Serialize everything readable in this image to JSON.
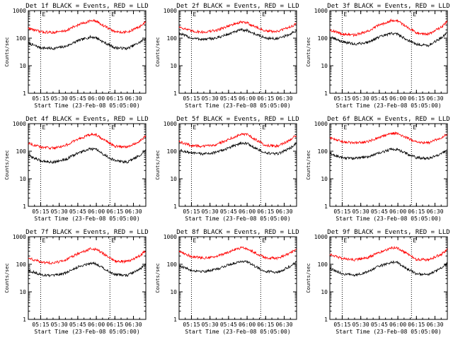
{
  "figure": {
    "background": "#ffffff",
    "axis_color": "#000000",
    "series_colors": {
      "events": "#000000",
      "lld": "#ff0000"
    }
  },
  "chart_data": [
    {
      "type": "line",
      "title": "Det 1f BLACK = Events, RED = LLD",
      "xlabel": "Start Time (23-Feb-08 05:05:00)",
      "ylabel": "Counts/sec",
      "yscale": "log",
      "ylim": [
        1,
        1000
      ],
      "xlim": [
        "05:05",
        "06:40"
      ],
      "yticks": [
        "1",
        "10",
        "100",
        "1000"
      ],
      "xticks": [
        "05:15",
        "05:30",
        "05:45",
        "06:00",
        "06:15",
        "06:30"
      ],
      "markers": [
        "05:15",
        "06:11"
      ],
      "marker_letters": [
        "E",
        "E"
      ],
      "grid": false,
      "x": [
        "05:05",
        "05:15",
        "05:25",
        "05:35",
        "05:45",
        "05:55",
        "06:00",
        "06:05",
        "06:15",
        "06:25",
        "06:35",
        "06:40"
      ],
      "series": [
        {
          "color": "#000000",
          "values": [
            65,
            45,
            42,
            50,
            80,
            110,
            105,
            75,
            45,
            42,
            70,
            100
          ]
        },
        {
          "color": "#ff0000",
          "values": [
            230,
            170,
            160,
            185,
            300,
            430,
            410,
            300,
            170,
            165,
            260,
            390
          ]
        }
      ]
    },
    {
      "type": "line",
      "title": "Det 2f BLACK = Events, RED = LLD",
      "xlabel": "Start Time (23-Feb-08 05:05:00)",
      "ylabel": "Counts/sec",
      "yscale": "log",
      "ylim": [
        1,
        1000
      ],
      "xlim": [
        "05:05",
        "06:40"
      ],
      "yticks": [
        "1",
        "10",
        "100",
        "1000"
      ],
      "xticks": [
        "05:15",
        "05:30",
        "05:45",
        "06:00",
        "06:15",
        "06:30"
      ],
      "markers": [
        "05:15",
        "06:11"
      ],
      "marker_letters": [
        "E",
        "E"
      ],
      "grid": false,
      "x": [
        "05:05",
        "05:15",
        "05:25",
        "05:35",
        "05:45",
        "05:55",
        "06:00",
        "06:05",
        "06:15",
        "06:25",
        "06:35",
        "06:40"
      ],
      "series": [
        {
          "color": "#000000",
          "values": [
            150,
            100,
            90,
            100,
            140,
            200,
            190,
            150,
            100,
            95,
            140,
            190
          ]
        },
        {
          "color": "#ff0000",
          "values": [
            260,
            180,
            165,
            190,
            280,
            380,
            360,
            280,
            180,
            175,
            260,
            330
          ]
        }
      ]
    },
    {
      "type": "line",
      "title": "Det 3f BLACK = Events, RED = LLD",
      "xlabel": "Start Time (23-Feb-08 05:05:00)",
      "ylabel": "Counts/sec",
      "yscale": "log",
      "ylim": [
        1,
        1000
      ],
      "xlim": [
        "05:05",
        "06:40"
      ],
      "yticks": [
        "1",
        "10",
        "100",
        "1000"
      ],
      "xticks": [
        "05:15",
        "05:30",
        "05:45",
        "06:00",
        "06:15",
        "06:30"
      ],
      "markers": [
        "05:15",
        "06:11"
      ],
      "marker_letters": [
        "E",
        "E"
      ],
      "grid": false,
      "x": [
        "05:05",
        "05:15",
        "05:25",
        "05:35",
        "05:45",
        "05:55",
        "06:00",
        "06:05",
        "06:15",
        "06:25",
        "06:35",
        "06:40"
      ],
      "series": [
        {
          "color": "#000000",
          "values": [
            110,
            75,
            60,
            70,
            110,
            150,
            140,
            100,
            60,
            55,
            100,
            170
          ]
        },
        {
          "color": "#ff0000",
          "values": [
            200,
            140,
            130,
            170,
            300,
            450,
            420,
            300,
            160,
            140,
            250,
            400
          ]
        }
      ]
    },
    {
      "type": "line",
      "title": "Det 4f BLACK = Events, RED = LLD",
      "xlabel": "Start Time (23-Feb-08 05:05:00)",
      "ylabel": "Counts/sec",
      "yscale": "log",
      "ylim": [
        1,
        1000
      ],
      "xlim": [
        "05:05",
        "06:40"
      ],
      "yticks": [
        "1",
        "10",
        "100",
        "1000"
      ],
      "xticks": [
        "05:15",
        "05:30",
        "05:45",
        "06:00",
        "06:15",
        "06:30"
      ],
      "markers": [
        "05:15",
        "06:11"
      ],
      "marker_letters": [
        "E",
        "E"
      ],
      "grid": false,
      "x": [
        "05:05",
        "05:15",
        "05:25",
        "05:35",
        "05:45",
        "05:55",
        "06:00",
        "06:05",
        "06:15",
        "06:25",
        "06:35",
        "06:40"
      ],
      "series": [
        {
          "color": "#000000",
          "values": [
            70,
            45,
            40,
            50,
            85,
            120,
            115,
            80,
            45,
            40,
            70,
            110
          ]
        },
        {
          "color": "#ff0000",
          "values": [
            200,
            140,
            130,
            160,
            270,
            400,
            390,
            280,
            150,
            145,
            230,
            360
          ]
        }
      ]
    },
    {
      "type": "line",
      "title": "Det 5f BLACK = Events, RED = LLD",
      "xlabel": "Start Time (23-Feb-08 05:05:00)",
      "ylabel": "Counts/sec",
      "yscale": "log",
      "ylim": [
        1,
        1000
      ],
      "xlim": [
        "05:05",
        "06:40"
      ],
      "yticks": [
        "1",
        "10",
        "100",
        "1000"
      ],
      "xticks": [
        "05:15",
        "05:30",
        "05:45",
        "06:00",
        "06:15",
        "06:30"
      ],
      "markers": [
        "05:15",
        "06:11"
      ],
      "marker_letters": [
        "E",
        "E"
      ],
      "grid": false,
      "x": [
        "05:05",
        "05:15",
        "05:25",
        "05:35",
        "05:45",
        "05:55",
        "06:00",
        "06:05",
        "06:15",
        "06:25",
        "06:35",
        "06:40"
      ],
      "series": [
        {
          "color": "#000000",
          "values": [
            110,
            85,
            80,
            90,
            130,
            200,
            190,
            140,
            85,
            80,
            130,
            200
          ]
        },
        {
          "color": "#ff0000",
          "values": [
            220,
            160,
            150,
            175,
            270,
            420,
            400,
            300,
            160,
            155,
            250,
            400
          ]
        }
      ]
    },
    {
      "type": "line",
      "title": "Det 6f BLACK = Events, RED = LLD",
      "xlabel": "Start Time (23-Feb-08 05:05:00)",
      "ylabel": "Counts/sec",
      "yscale": "log",
      "ylim": [
        1,
        1000
      ],
      "xlim": [
        "05:05",
        "06:40"
      ],
      "yticks": [
        "1",
        "10",
        "100",
        "1000"
      ],
      "xticks": [
        "05:15",
        "05:30",
        "05:45",
        "06:00",
        "06:15",
        "06:30"
      ],
      "markers": [
        "05:15",
        "06:11"
      ],
      "marker_letters": [
        "E",
        "E"
      ],
      "grid": false,
      "x": [
        "05:05",
        "05:15",
        "05:25",
        "05:35",
        "05:45",
        "05:55",
        "06:00",
        "06:05",
        "06:15",
        "06:25",
        "06:35",
        "06:40"
      ],
      "series": [
        {
          "color": "#000000",
          "values": [
            80,
            58,
            55,
            62,
            85,
            120,
            115,
            90,
            58,
            55,
            80,
            110
          ]
        },
        {
          "color": "#ff0000",
          "values": [
            300,
            220,
            200,
            215,
            320,
            450,
            440,
            340,
            215,
            205,
            300,
            420
          ]
        }
      ]
    },
    {
      "type": "line",
      "title": "Det 7f BLACK = Events, RED = LLD",
      "xlabel": "Start Time (23-Feb-08 05:05:00)",
      "ylabel": "Counts/sec",
      "yscale": "log",
      "ylim": [
        1,
        1000
      ],
      "xlim": [
        "05:05",
        "06:40"
      ],
      "yticks": [
        "1",
        "10",
        "100",
        "1000"
      ],
      "xticks": [
        "05:15",
        "05:30",
        "05:45",
        "06:00",
        "06:15",
        "06:30"
      ],
      "markers": [
        "05:15",
        "06:11"
      ],
      "marker_letters": [
        "E",
        "E"
      ],
      "grid": false,
      "x": [
        "05:05",
        "05:15",
        "05:25",
        "05:35",
        "05:45",
        "05:55",
        "06:00",
        "06:05",
        "06:15",
        "06:25",
        "06:35",
        "06:40"
      ],
      "series": [
        {
          "color": "#000000",
          "values": [
            60,
            42,
            38,
            48,
            80,
            110,
            105,
            75,
            42,
            40,
            65,
            100
          ]
        },
        {
          "color": "#ff0000",
          "values": [
            170,
            120,
            110,
            140,
            240,
            360,
            350,
            250,
            130,
            125,
            200,
            310
          ]
        }
      ]
    },
    {
      "type": "line",
      "title": "Det 8f BLACK = Events, RED = LLD",
      "xlabel": "Start Time (23-Feb-08 05:05:00)",
      "ylabel": "Counts/sec",
      "yscale": "log",
      "ylim": [
        1,
        1000
      ],
      "xlim": [
        "05:05",
        "06:40"
      ],
      "yticks": [
        "1",
        "10",
        "100",
        "1000"
      ],
      "xticks": [
        "05:15",
        "05:30",
        "05:45",
        "06:00",
        "06:15",
        "06:30"
      ],
      "markers": [
        "05:15",
        "06:11"
      ],
      "marker_letters": [
        "E",
        "E"
      ],
      "grid": false,
      "x": [
        "05:05",
        "05:15",
        "05:25",
        "05:35",
        "05:45",
        "05:55",
        "06:00",
        "06:05",
        "06:15",
        "06:25",
        "06:35",
        "06:40"
      ],
      "series": [
        {
          "color": "#000000",
          "values": [
            90,
            60,
            55,
            65,
            95,
            130,
            125,
            90,
            55,
            52,
            85,
            120
          ]
        },
        {
          "color": "#ff0000",
          "values": [
            300,
            190,
            170,
            190,
            280,
            390,
            380,
            280,
            170,
            165,
            260,
            370
          ]
        }
      ]
    },
    {
      "type": "line",
      "title": "Det 9f BLACK = Events, RED = LLD",
      "xlabel": "Start Time (23-Feb-08 05:05:00)",
      "ylabel": "Counts/sec",
      "yscale": "log",
      "ylim": [
        1,
        1000
      ],
      "xlim": [
        "05:05",
        "06:40"
      ],
      "yticks": [
        "1",
        "10",
        "100",
        "1000"
      ],
      "xticks": [
        "05:15",
        "05:30",
        "05:45",
        "06:00",
        "06:15",
        "06:30"
      ],
      "markers": [
        "05:15",
        "06:11"
      ],
      "marker_letters": [
        "E",
        "E"
      ],
      "grid": false,
      "x": [
        "05:05",
        "05:15",
        "05:25",
        "05:35",
        "05:45",
        "05:55",
        "06:00",
        "06:05",
        "06:15",
        "06:25",
        "06:35",
        "06:40"
      ],
      "series": [
        {
          "color": "#000000",
          "values": [
            70,
            45,
            40,
            52,
            85,
            120,
            115,
            80,
            45,
            42,
            70,
            110
          ]
        },
        {
          "color": "#ff0000",
          "values": [
            230,
            160,
            145,
            170,
            270,
            400,
            390,
            280,
            150,
            145,
            230,
            350
          ]
        }
      ]
    }
  ]
}
